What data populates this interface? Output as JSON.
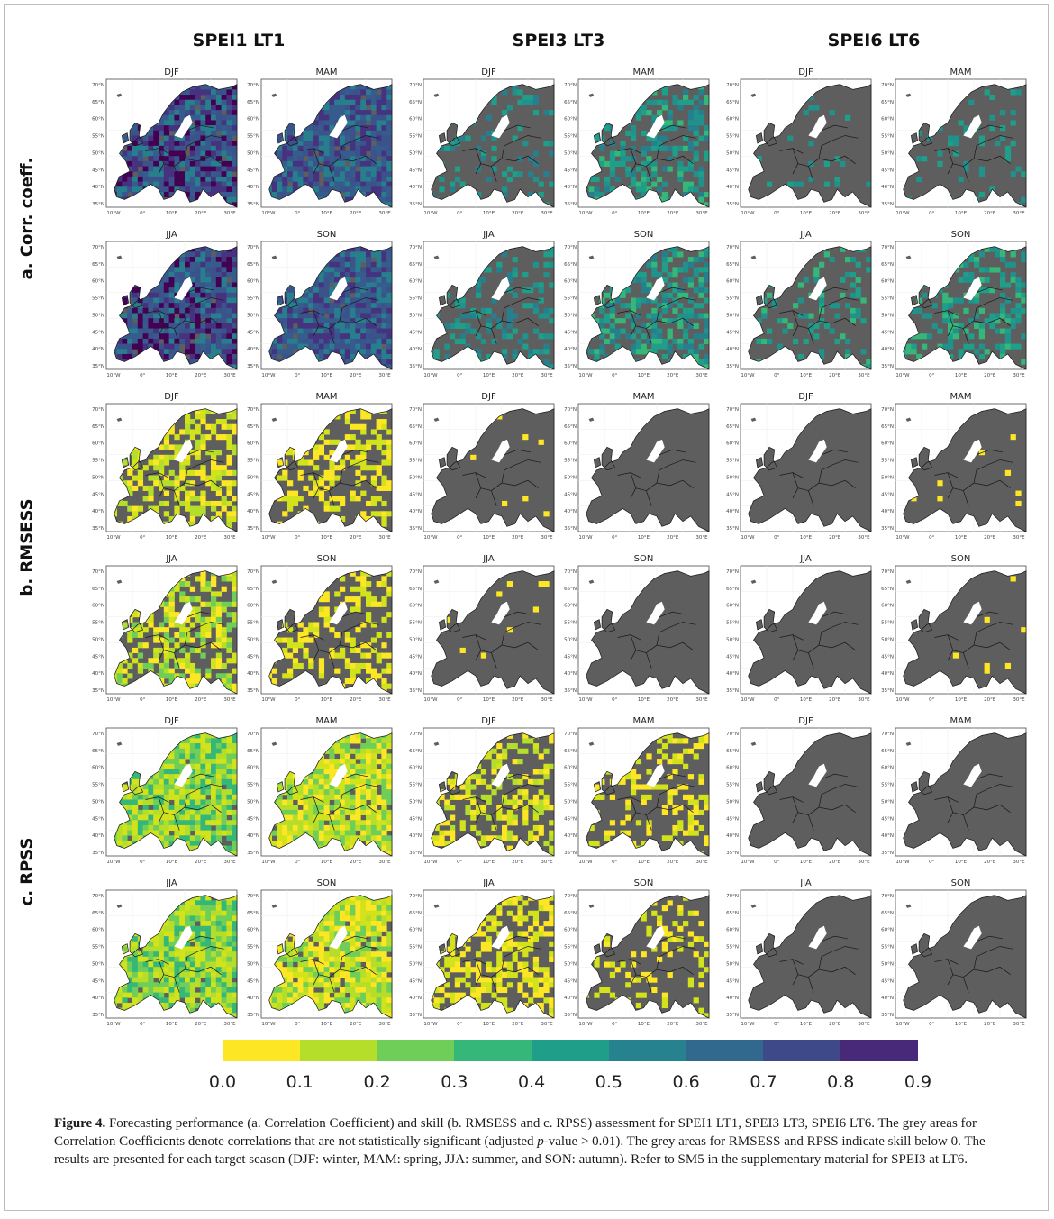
{
  "figure": {
    "columns": [
      "SPEI1 LT1",
      "SPEI3 LT3",
      "SPEI6 LT6"
    ],
    "rows": [
      "a. Corr. coeff.",
      "b. RMSESS",
      "c. RPSS"
    ],
    "seasons": [
      "DJF",
      "MAM",
      "JJA",
      "SON"
    ],
    "lat_ticks": [
      "70°N",
      "65°N",
      "60°N",
      "55°N",
      "50°N",
      "45°N",
      "40°N",
      "35°N"
    ],
    "lon_ticks": [
      "10°W",
      "0°",
      "10°E",
      "20°E",
      "30°E"
    ],
    "colors": {
      "grey_land": "#5e5e5e",
      "sea": "#ffffff",
      "panel_border": "#4a4a4a"
    },
    "panels": [
      {
        "row": 0,
        "col": 0,
        "season": "DJF",
        "fill": 0.95,
        "colors": [
          "#46327e",
          "#365c8d",
          "#277f8e",
          "#3b528b",
          "#440154"
        ]
      },
      {
        "row": 0,
        "col": 0,
        "season": "MAM",
        "fill": 0.95,
        "colors": [
          "#365c8d",
          "#277f8e",
          "#3b528b",
          "#46327e"
        ]
      },
      {
        "row": 0,
        "col": 0,
        "season": "JJA",
        "fill": 0.95,
        "colors": [
          "#365c8d",
          "#277f8e",
          "#3b528b",
          "#46327e",
          "#440154"
        ]
      },
      {
        "row": 0,
        "col": 0,
        "season": "SON",
        "fill": 0.95,
        "colors": [
          "#277f8e",
          "#365c8d",
          "#3b528b",
          "#46327e"
        ]
      },
      {
        "row": 0,
        "col": 1,
        "season": "DJF",
        "fill": 0.18,
        "colors": [
          "#1f9e89",
          "#277f8e",
          "#21918c"
        ]
      },
      {
        "row": 0,
        "col": 1,
        "season": "MAM",
        "fill": 0.45,
        "colors": [
          "#1f9e89",
          "#277f8e",
          "#21918c",
          "#35b779"
        ]
      },
      {
        "row": 0,
        "col": 1,
        "season": "JJA",
        "fill": 0.28,
        "colors": [
          "#1f9e89",
          "#277f8e",
          "#21918c"
        ]
      },
      {
        "row": 0,
        "col": 1,
        "season": "SON",
        "fill": 0.55,
        "colors": [
          "#1f9e89",
          "#21918c",
          "#35b779",
          "#277f8e"
        ]
      },
      {
        "row": 0,
        "col": 2,
        "season": "DJF",
        "fill": 0.04,
        "colors": [
          "#1f9e89",
          "#21918c"
        ]
      },
      {
        "row": 0,
        "col": 2,
        "season": "MAM",
        "fill": 0.12,
        "colors": [
          "#1f9e89",
          "#21918c"
        ]
      },
      {
        "row": 0,
        "col": 2,
        "season": "JJA",
        "fill": 0.2,
        "colors": [
          "#1f9e89",
          "#21918c",
          "#35b779"
        ]
      },
      {
        "row": 0,
        "col": 2,
        "season": "SON",
        "fill": 0.35,
        "colors": [
          "#1f9e89",
          "#21918c",
          "#35b779"
        ]
      },
      {
        "row": 1,
        "col": 0,
        "season": "DJF",
        "fill": 0.55,
        "colors": [
          "#fde725",
          "#d2e21b",
          "#b5de2b"
        ]
      },
      {
        "row": 1,
        "col": 0,
        "season": "MAM",
        "fill": 0.4,
        "colors": [
          "#fde725",
          "#d2e21b"
        ]
      },
      {
        "row": 1,
        "col": 0,
        "season": "JJA",
        "fill": 0.6,
        "colors": [
          "#fde725",
          "#d2e21b",
          "#b5de2b",
          "#6ece58"
        ]
      },
      {
        "row": 1,
        "col": 0,
        "season": "SON",
        "fill": 0.35,
        "colors": [
          "#fde725",
          "#d2e21b"
        ]
      },
      {
        "row": 1,
        "col": 1,
        "season": "DJF",
        "fill": 0.01,
        "colors": [
          "#fde725"
        ]
      },
      {
        "row": 1,
        "col": 1,
        "season": "MAM",
        "fill": 0.0,
        "colors": [
          "#fde725"
        ]
      },
      {
        "row": 1,
        "col": 1,
        "season": "JJA",
        "fill": 0.02,
        "colors": [
          "#fde725"
        ]
      },
      {
        "row": 1,
        "col": 1,
        "season": "SON",
        "fill": 0.0,
        "colors": [
          "#fde725"
        ]
      },
      {
        "row": 1,
        "col": 2,
        "season": "DJF",
        "fill": 0.0,
        "colors": [
          "#fde725"
        ]
      },
      {
        "row": 1,
        "col": 2,
        "season": "MAM",
        "fill": 0.01,
        "colors": [
          "#fde725"
        ]
      },
      {
        "row": 1,
        "col": 2,
        "season": "JJA",
        "fill": 0.0,
        "colors": [
          "#fde725"
        ]
      },
      {
        "row": 1,
        "col": 2,
        "season": "SON",
        "fill": 0.02,
        "colors": [
          "#fde725"
        ]
      },
      {
        "row": 2,
        "col": 0,
        "season": "DJF",
        "fill": 0.95,
        "colors": [
          "#b5de2b",
          "#6ece58",
          "#d2e21b",
          "#35b779"
        ]
      },
      {
        "row": 2,
        "col": 0,
        "season": "MAM",
        "fill": 0.9,
        "colors": [
          "#d2e21b",
          "#b5de2b",
          "#6ece58",
          "#fde725"
        ]
      },
      {
        "row": 2,
        "col": 0,
        "season": "JJA",
        "fill": 0.95,
        "colors": [
          "#6ece58",
          "#b5de2b",
          "#35b779",
          "#d2e21b"
        ]
      },
      {
        "row": 2,
        "col": 0,
        "season": "SON",
        "fill": 0.9,
        "colors": [
          "#b5de2b",
          "#d2e21b",
          "#6ece58",
          "#fde725"
        ]
      },
      {
        "row": 2,
        "col": 1,
        "season": "DJF",
        "fill": 0.45,
        "colors": [
          "#d2e21b",
          "#fde725",
          "#b5de2b"
        ]
      },
      {
        "row": 2,
        "col": 1,
        "season": "MAM",
        "fill": 0.3,
        "colors": [
          "#fde725",
          "#d2e21b"
        ]
      },
      {
        "row": 2,
        "col": 1,
        "season": "JJA",
        "fill": 0.5,
        "colors": [
          "#fde725",
          "#d2e21b"
        ]
      },
      {
        "row": 2,
        "col": 1,
        "season": "SON",
        "fill": 0.2,
        "colors": [
          "#fde725",
          "#d2e21b"
        ]
      },
      {
        "row": 2,
        "col": 2,
        "season": "DJF",
        "fill": 0.0,
        "colors": [
          "#fde725"
        ]
      },
      {
        "row": 2,
        "col": 2,
        "season": "MAM",
        "fill": 0.0,
        "colors": [
          "#fde725"
        ]
      },
      {
        "row": 2,
        "col": 2,
        "season": "JJA",
        "fill": 0.0,
        "colors": [
          "#fde725"
        ]
      },
      {
        "row": 2,
        "col": 2,
        "season": "SON",
        "fill": 0.0,
        "colors": [
          "#fde725"
        ]
      }
    ]
  },
  "chart_data": {
    "type": "heatmap",
    "title": "",
    "colorbar": {
      "ticks": [
        "0.0",
        "0.1",
        "0.2",
        "0.3",
        "0.4",
        "0.5",
        "0.6",
        "0.7",
        "0.8",
        "0.9"
      ],
      "colors": [
        "#fde725",
        "#b5de2b",
        "#6ece58",
        "#35b779",
        "#1f9e89",
        "#26828e",
        "#31688e",
        "#3e4989",
        "#482878",
        "#440154"
      ]
    }
  },
  "caption": {
    "label": "Figure 4.",
    "text_1": " Forecasting performance (a. Correlation Coefficient) and skill (b. RMSESS and c. RPSS) assessment for SPEI1 LT1, SPEI3 LT3, SPEI6 LT6. The grey areas for Correlation Coefficients denote correlations that are not statistically significant (adjusted ",
    "pvalue": "p",
    "text_2": "-value > 0.01). The grey areas for RMSESS and RPSS indicate skill below 0. The results are presented for each target season (DJF: winter, MAM: spring, JJA: summer, and SON: autumn). Refer to SM5 in the supplementary material for SPEI3 at LT6."
  }
}
